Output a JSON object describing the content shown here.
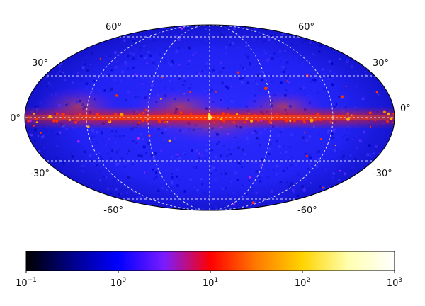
{
  "chart_data": [
    {
      "type": "heatmap",
      "projection": "Mollweide (all-sky, Galactic coordinates)",
      "title": "",
      "xlabel": "",
      "ylabel": "",
      "graticule": {
        "latitudes_deg": [
          -60,
          -30,
          0,
          30,
          60
        ],
        "longitudes_deg": [
          -120,
          -60,
          0,
          60,
          120
        ],
        "line_style": "dashed white"
      },
      "latitude_tick_labels": {
        "left": [
          "60°",
          "30°",
          "0°",
          "-30°",
          "-60°"
        ],
        "right": [
          "60°",
          "30°",
          "0°",
          "-30°",
          "-60°"
        ]
      },
      "features": [
        {
          "name": "bright band along 0° latitude",
          "value_range": [
            10,
            100
          ]
        },
        {
          "name": "bright compact source near map centre",
          "value": 200
        },
        {
          "name": "diffuse background",
          "value_range": [
            0.3,
            2
          ]
        }
      ]
    },
    {
      "type": "colorbar",
      "scale": "log",
      "range": [
        0.1,
        1000
      ],
      "tick_values": [
        0.1,
        1,
        10,
        100,
        1000
      ],
      "tick_labels": [
        {
          "base": "10",
          "exp": "−1"
        },
        {
          "base": "10",
          "exp": "0"
        },
        {
          "base": "10",
          "exp": "1"
        },
        {
          "base": "10",
          "exp": "2"
        },
        {
          "base": "10",
          "exp": "3"
        }
      ],
      "colormap": "gnuplot2",
      "colormap_stops": [
        "#000000",
        "#00008a",
        "#0000ff",
        "#7a1cff",
        "#ff0000",
        "#ff7a00",
        "#ffd400",
        "#ffffb0",
        "#ffffff"
      ]
    }
  ]
}
